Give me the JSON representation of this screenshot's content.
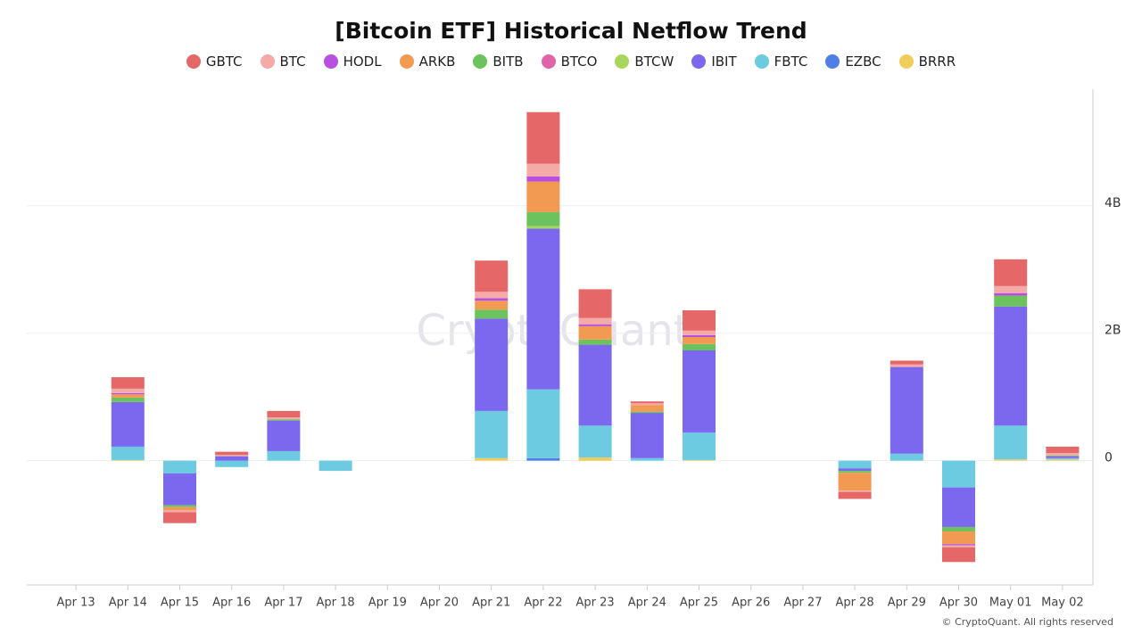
{
  "chart_data": {
    "type": "bar",
    "stacked": true,
    "title": "[Bitcoin ETF] Historical Netflow Trend",
    "watermark": "CryptoQuant",
    "footer": "© CryptoQuant. All rights reserved",
    "categories": [
      "Apr 13",
      "Apr 14",
      "Apr 15",
      "Apr 16",
      "Apr 17",
      "Apr 18",
      "Apr 19",
      "Apr 20",
      "Apr 21",
      "Apr 22",
      "Apr 23",
      "Apr 24",
      "Apr 25",
      "Apr 26",
      "Apr 27",
      "Apr 28",
      "Apr 29",
      "Apr 30",
      "May 01",
      "May 02"
    ],
    "ylim": [
      -1.95,
      5.83
    ],
    "yticks": [
      0,
      {
        "value": 2,
        "label": "2B"
      },
      {
        "value": 4,
        "label": "4B"
      }
    ],
    "grid": true,
    "series": [
      {
        "name": "GBTC",
        "color": "#e66767",
        "values": [
          0,
          0.18,
          -0.17,
          0.05,
          0.1,
          0,
          0,
          0,
          0.49,
          0.81,
          0.45,
          0.03,
          0.32,
          0,
          0,
          -0.11,
          0.06,
          -0.23,
          0.42,
          0.1
        ]
      },
      {
        "name": "BTC",
        "color": "#f4aaa6",
        "values": [
          0,
          0.07,
          -0.03,
          0.02,
          0.03,
          0,
          0,
          0,
          0.1,
          0.2,
          0.1,
          0.03,
          0.07,
          0,
          0,
          -0.02,
          0.04,
          -0.03,
          0.11,
          0.04
        ]
      },
      {
        "name": "HODL",
        "color": "#b84fe0",
        "values": [
          0,
          0.02,
          0,
          0,
          0,
          0,
          0,
          0,
          0.04,
          0.08,
          0.03,
          0,
          0.03,
          0,
          0,
          0,
          0,
          -0.02,
          0.04,
          0
        ]
      },
      {
        "name": "ARKB",
        "color": "#f39a52",
        "values": [
          0,
          0.05,
          -0.05,
          0,
          0,
          0,
          0,
          0,
          0.14,
          0.48,
          0.21,
          0.1,
          0.11,
          0,
          0,
          -0.28,
          0,
          -0.2,
          0,
          0
        ]
      },
      {
        "name": "BITB",
        "color": "#6cc35e",
        "values": [
          0,
          0.07,
          -0.03,
          0,
          0.02,
          0,
          0,
          0,
          0.14,
          0.22,
          0.08,
          0.02,
          0.1,
          0,
          0,
          -0.03,
          0,
          -0.07,
          0.17,
          0.01
        ]
      },
      {
        "name": "BTCO",
        "color": "#e064a8",
        "values": [
          0,
          0,
          0,
          0,
          0,
          0,
          0,
          0,
          0,
          0,
          0,
          0,
          0,
          0,
          0,
          0,
          0,
          0,
          0,
          0
        ]
      },
      {
        "name": "BTCW",
        "color": "#a8d65a",
        "values": [
          0,
          0,
          0,
          0,
          0,
          0,
          0,
          0,
          0,
          0.04,
          0,
          0,
          0,
          0,
          0,
          0,
          0,
          0,
          0,
          0
        ]
      },
      {
        "name": "IBIT",
        "color": "#7b68ee",
        "values": [
          0,
          0.7,
          -0.5,
          0.07,
          0.48,
          0,
          0,
          0,
          1.45,
          2.52,
          1.27,
          0.71,
          1.29,
          0,
          0,
          -0.04,
          1.36,
          -0.62,
          1.87,
          0.03
        ]
      },
      {
        "name": "FBTC",
        "color": "#6ccbe0",
        "values": [
          0,
          0.21,
          -0.2,
          -0.1,
          0.15,
          -0.16,
          0,
          0,
          0.74,
          1.08,
          0.5,
          0.04,
          0.43,
          0,
          0,
          -0.12,
          0.11,
          -0.42,
          0.53,
          0.02
        ]
      },
      {
        "name": "EZBC",
        "color": "#4e7ee6",
        "values": [
          0,
          0,
          0,
          0,
          0,
          0,
          0,
          0,
          0,
          0.04,
          0,
          0,
          0,
          0,
          0,
          0,
          0,
          0,
          0,
          0
        ]
      },
      {
        "name": "BRRR",
        "color": "#f0cc5a",
        "values": [
          0,
          0.01,
          0,
          0,
          0,
          0,
          0,
          0,
          0.04,
          0,
          0.05,
          0,
          0.01,
          0,
          0,
          0,
          0,
          0,
          0.02,
          0.02
        ]
      }
    ]
  }
}
